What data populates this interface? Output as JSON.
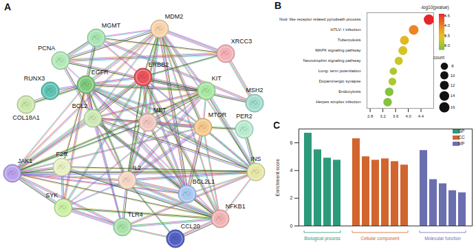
{
  "panel_labels": [
    "A",
    "B",
    "C"
  ],
  "diagram": {
    "nodes": [
      {
        "label": "MDM2",
        "color": "#f6d3ab"
      },
      {
        "label": "MGMT",
        "color": "#a9e4b4"
      },
      {
        "label": "XRCC3",
        "color": "#f2b1b6"
      },
      {
        "label": "PCNA",
        "color": "#b3e8b8"
      },
      {
        "label": "EGFR",
        "color": "#7fca7c"
      },
      {
        "label": "ERBB2",
        "color": "#e8545c"
      },
      {
        "label": "KIT",
        "color": "#a8e6a2"
      },
      {
        "label": "MSH2",
        "color": "#a3dccf"
      },
      {
        "label": "RUNX3",
        "color": "#5fc2b2"
      },
      {
        "label": "COL18A1",
        "color": "#cbe7ac"
      },
      {
        "label": "PER2",
        "color": "#b8ead0"
      },
      {
        "label": "BCL2",
        "color": "#cde8b6"
      },
      {
        "label": "MET",
        "color": "#f1c7c2"
      },
      {
        "label": "MTOR",
        "color": "#f4c98d"
      },
      {
        "label": "INS",
        "color": "#e6e6a9"
      },
      {
        "label": "JAK1",
        "color": "#b9a2ea"
      },
      {
        "label": "F2R",
        "color": "#e7f0c2"
      },
      {
        "label": "IL2",
        "color": "#f5d6c4"
      },
      {
        "label": "BCL2L1",
        "color": "#a9c9f1"
      },
      {
        "label": "SYK",
        "color": "#cbf0a4"
      },
      {
        "label": "NFKB1",
        "color": "#f1b3b3"
      },
      {
        "label": "TLR4",
        "color": "#aae1aa"
      },
      {
        "label": "CCL20",
        "color": "#5262c2"
      }
    ],
    "edges": [
      [
        "MDM2",
        "MGMT"
      ],
      [
        "MDM2",
        "PCNA"
      ],
      [
        "MDM2",
        "EGFR"
      ],
      [
        "MDM2",
        "ERBB2"
      ],
      [
        "MDM2",
        "KIT"
      ],
      [
        "MDM2",
        "MTOR"
      ],
      [
        "MDM2",
        "BCL2"
      ],
      [
        "MDM2",
        "MET"
      ],
      [
        "MDM2",
        "BCL2L1"
      ],
      [
        "MDM2",
        "NFKB1"
      ],
      [
        "MDM2",
        "IL2"
      ],
      [
        "MDM2",
        "XRCC3"
      ],
      [
        "MDM2",
        "INS"
      ],
      [
        "MDM2",
        "JAK1"
      ],
      [
        "MGMT",
        "PCNA"
      ],
      [
        "MGMT",
        "XRCC3"
      ],
      [
        "MGMT",
        "MSH2"
      ],
      [
        "MGMT",
        "EGFR"
      ],
      [
        "MGMT",
        "ERBB2"
      ],
      [
        "PCNA",
        "MSH2"
      ],
      [
        "PCNA",
        "XRCC3"
      ],
      [
        "PCNA",
        "EGFR"
      ],
      [
        "PCNA",
        "BCL2"
      ],
      [
        "XRCC3",
        "MSH2"
      ],
      [
        "XRCC3",
        "ERBB2"
      ],
      [
        "EGFR",
        "ERBB2"
      ],
      [
        "EGFR",
        "KIT"
      ],
      [
        "EGFR",
        "MET"
      ],
      [
        "EGFR",
        "MTOR"
      ],
      [
        "EGFR",
        "BCL2"
      ],
      [
        "EGFR",
        "JAK1"
      ],
      [
        "EGFR",
        "IL2"
      ],
      [
        "EGFR",
        "BCL2L1"
      ],
      [
        "EGFR",
        "NFKB1"
      ],
      [
        "EGFR",
        "SYK"
      ],
      [
        "EGFR",
        "INS"
      ],
      [
        "EGFR",
        "F2R"
      ],
      [
        "EGFR",
        "RUNX3"
      ],
      [
        "EGFR",
        "COL18A1"
      ],
      [
        "EGFR",
        "TLR4"
      ],
      [
        "ERBB2",
        "KIT"
      ],
      [
        "ERBB2",
        "MET"
      ],
      [
        "ERBB2",
        "MTOR"
      ],
      [
        "ERBB2",
        "BCL2"
      ],
      [
        "ERBB2",
        "JAK1"
      ],
      [
        "ERBB2",
        "IL2"
      ],
      [
        "ERBB2",
        "BCL2L1"
      ],
      [
        "ERBB2",
        "NFKB1"
      ],
      [
        "ERBB2",
        "INS"
      ],
      [
        "ERBB2",
        "SYK"
      ],
      [
        "KIT",
        "MET"
      ],
      [
        "KIT",
        "MTOR"
      ],
      [
        "KIT",
        "JAK1"
      ],
      [
        "KIT",
        "IL2"
      ],
      [
        "KIT",
        "SYK"
      ],
      [
        "KIT",
        "BCL2"
      ],
      [
        "KIT",
        "INS"
      ],
      [
        "BCL2",
        "MET"
      ],
      [
        "BCL2",
        "MTOR"
      ],
      [
        "BCL2",
        "BCL2L1"
      ],
      [
        "BCL2",
        "IL2"
      ],
      [
        "BCL2",
        "NFKB1"
      ],
      [
        "BCL2",
        "JAK1"
      ],
      [
        "BCL2",
        "TLR4"
      ],
      [
        "BCL2",
        "INS"
      ],
      [
        "MET",
        "MTOR"
      ],
      [
        "MET",
        "JAK1"
      ],
      [
        "MET",
        "IL2"
      ],
      [
        "MET",
        "BCL2L1"
      ],
      [
        "MET",
        "INS"
      ],
      [
        "MTOR",
        "INS"
      ],
      [
        "MTOR",
        "BCL2L1"
      ],
      [
        "MTOR",
        "NFKB1"
      ],
      [
        "MTOR",
        "PER2"
      ],
      [
        "MTOR",
        "IL2"
      ],
      [
        "MTOR",
        "JAK1"
      ],
      [
        "JAK1",
        "IL2"
      ],
      [
        "JAK1",
        "SYK"
      ],
      [
        "JAK1",
        "NFKB1"
      ],
      [
        "JAK1",
        "TLR4"
      ],
      [
        "JAK1",
        "INS"
      ],
      [
        "JAK1",
        "BCL2L1"
      ],
      [
        "JAK1",
        "F2R"
      ],
      [
        "IL2",
        "NFKB1"
      ],
      [
        "IL2",
        "SYK"
      ],
      [
        "IL2",
        "TLR4"
      ],
      [
        "IL2",
        "BCL2L1"
      ],
      [
        "IL2",
        "CCL20"
      ],
      [
        "IL2",
        "INS"
      ],
      [
        "BCL2L1",
        "NFKB1"
      ],
      [
        "BCL2L1",
        "INS"
      ],
      [
        "NFKB1",
        "TLR4"
      ],
      [
        "NFKB1",
        "CCL20"
      ],
      [
        "NFKB1",
        "INS"
      ],
      [
        "NFKB1",
        "SYK"
      ],
      [
        "SYK",
        "TLR4"
      ],
      [
        "TLR4",
        "CCL20"
      ],
      [
        "TLR4",
        "INS"
      ],
      [
        "F2R",
        "NFKB1"
      ],
      [
        "F2R",
        "INS"
      ],
      [
        "F2R",
        "SYK"
      ],
      [
        "PER2",
        "INS"
      ]
    ]
  },
  "chart_data": [
    {
      "type": "scatter",
      "categories": [
        "Nod- like receptor related pyrodeath process",
        "HTLV- I infection",
        "Tuberculosis",
        "MAPK signaling pathway",
        "Neurotrophin signaling pathway",
        "Long- term potentiation",
        "Dopaminergic synapse",
        "Endocytosis",
        "Herpes simplex infection"
      ],
      "x": [
        4.65,
        4.17,
        3.88,
        3.83,
        3.7,
        3.53,
        3.5,
        3.4,
        3.35
      ],
      "size": [
        16,
        14,
        12,
        12,
        10,
        8,
        9,
        11,
        11
      ],
      "color_values": [
        4.6,
        4.0,
        3.6,
        3.4,
        3.3,
        3.1,
        3.1,
        2.9,
        2.9
      ],
      "xlim": [
        2.7,
        4.8
      ],
      "xticks": [
        2.8,
        3.2,
        3.6,
        {
          "value": 4,
          "label": "4.0"
        },
        4.4
      ],
      "colorbar": {
        "title": "-log10(pvalue)",
        "range": [
          2.8,
          4.6
        ],
        "ticks": [
          4.5,
          {
            "value": 4,
            "label": "4.0"
          },
          3.5,
          {
            "value": 3,
            "label": "3.0"
          }
        ]
      },
      "size_legend": {
        "title": "count",
        "ticks": [
          8,
          10,
          12,
          14,
          16
        ]
      },
      "grid": false
    },
    {
      "type": "bar",
      "ylabel": "Enrichment score",
      "ylim": [
        0,
        7
      ],
      "yticks": [
        0,
        2,
        4,
        6
      ],
      "grid": false,
      "legend": "top-right",
      "series": [
        {
          "name": "BP",
          "group_label": "Biological process",
          "color": "#2b9a7a",
          "categories": [
            null,
            null,
            null,
            null
          ],
          "values": [
            6.7,
            5.5,
            4.9,
            4.75
          ]
        },
        {
          "name": "CC",
          "group_label": "Cellular component",
          "color": "#d2652d",
          "categories": [
            null,
            null,
            null,
            null,
            null,
            null
          ],
          "values": [
            6.3,
            5.0,
            4.75,
            4.85,
            4.65,
            4.4
          ]
        },
        {
          "name": "MF",
          "group_label": "Molecular function",
          "color": "#6a6fb0",
          "categories": [
            null,
            null,
            null,
            null,
            null
          ],
          "values": [
            5.45,
            3.35,
            3.05,
            2.55,
            2.4
          ]
        }
      ]
    }
  ]
}
